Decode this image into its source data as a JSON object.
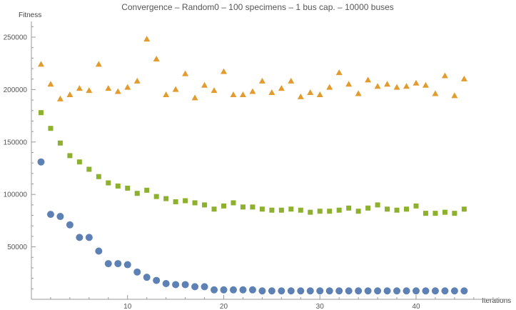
{
  "chart_data": {
    "type": "scatter",
    "title": "Convergence  –  Random0  –  100  specimens  –  1  bus  cap.  –  10000  buses",
    "xlabel": "Iterations",
    "ylabel": "Fitness",
    "xlim": [
      0,
      49.5
    ],
    "ylim": [
      0,
      265000
    ],
    "grid": false,
    "x_major_ticks": [
      10,
      20,
      30,
      40
    ],
    "y_major_ticks": [
      50000,
      100000,
      150000,
      200000,
      250000
    ],
    "x_minor_ticks": [
      2,
      4,
      6,
      8,
      12,
      14,
      16,
      18,
      22,
      24,
      26,
      28,
      32,
      34,
      36,
      38,
      42,
      44,
      46,
      48
    ],
    "y_minor_ticks": [
      10000,
      20000,
      30000,
      40000,
      60000,
      70000,
      80000,
      90000,
      110000,
      120000,
      130000,
      140000,
      160000,
      170000,
      180000,
      190000,
      210000,
      220000,
      230000,
      240000,
      260000
    ],
    "tick_format": "plain",
    "x": [
      1,
      2,
      3,
      4,
      5,
      6,
      7,
      8,
      9,
      10,
      11,
      12,
      13,
      14,
      15,
      16,
      17,
      18,
      19,
      20,
      21,
      22,
      23,
      24,
      25,
      26,
      27,
      28,
      29,
      30,
      31,
      32,
      33,
      34,
      35,
      36,
      37,
      38,
      39,
      40,
      41,
      42,
      43,
      44,
      45
    ],
    "series": [
      {
        "marker": "triangle",
        "color": "#E29B2E",
        "values": [
          224000,
          205000,
          191000,
          195000,
          201000,
          199000,
          224000,
          201000,
          198000,
          202000,
          208000,
          248000,
          229000,
          195000,
          200000,
          215000,
          192000,
          204000,
          199000,
          217000,
          195000,
          195000,
          198000,
          208000,
          197000,
          201000,
          208000,
          193000,
          197000,
          195000,
          202000,
          216000,
          205000,
          196000,
          209000,
          203000,
          205000,
          202000,
          203000,
          206000,
          204000,
          196000,
          213000,
          194000,
          210000
        ]
      },
      {
        "marker": "square",
        "color": "#8DB12E",
        "values": [
          178000,
          163000,
          149000,
          137000,
          131000,
          124000,
          117000,
          111000,
          108000,
          106000,
          101000,
          104000,
          98000,
          96000,
          93000,
          94000,
          92000,
          90000,
          86000,
          89000,
          92000,
          88000,
          88000,
          86000,
          85000,
          85000,
          86000,
          85000,
          83000,
          84000,
          84000,
          85000,
          87000,
          84000,
          87000,
          90000,
          86000,
          85000,
          86000,
          89000,
          82000,
          82000,
          83000,
          82000,
          86000
        ]
      },
      {
        "marker": "circle",
        "color": "#5E81B5",
        "values": [
          131000,
          81000,
          79000,
          71000,
          59000,
          59000,
          46000,
          34000,
          34000,
          33000,
          26000,
          21000,
          18000,
          15000,
          14000,
          14000,
          12000,
          12000,
          9000,
          9000,
          9000,
          9000,
          9000,
          8000,
          8000,
          8000,
          8000,
          8000,
          8000,
          8000,
          8000,
          8000,
          8000,
          8000,
          8000,
          8000,
          8000,
          8000,
          8000,
          8000,
          8000,
          8000,
          8000,
          8000,
          8000
        ]
      }
    ]
  }
}
